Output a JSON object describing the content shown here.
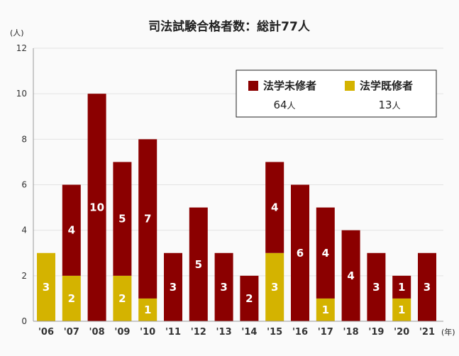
{
  "title": "司法試験合格者数：総計77人",
  "y_unit": "(人)",
  "x_unit": "(年)",
  "legend": {
    "items": [
      {
        "name": "法学未修者",
        "count": "64",
        "unit": "人",
        "color": "#8b0000"
      },
      {
        "name": "法学既修者",
        "count": "13",
        "unit": "人",
        "color": "#d4b300"
      }
    ]
  },
  "chart_data": {
    "type": "bar",
    "stacked": true,
    "title": "司法試験合格者数：総計77人",
    "xlabel": "",
    "ylabel": "",
    "ylim": [
      0,
      12
    ],
    "yticks": [
      0,
      2,
      4,
      6,
      8,
      10,
      12
    ],
    "grid": true,
    "legend_position": "top-right",
    "categories": [
      "'06",
      "'07",
      "'08",
      "'09",
      "'10",
      "'11",
      "'12",
      "'13",
      "'14",
      "'15",
      "'16",
      "'17",
      "'18",
      "'19",
      "'20",
      "'21"
    ],
    "series": [
      {
        "name": "法学既修者",
        "color": "#d4b300",
        "values": [
          3,
          2,
          0,
          2,
          1,
          0,
          0,
          0,
          0,
          3,
          0,
          1,
          0,
          0,
          1,
          0
        ]
      },
      {
        "name": "法学未修者",
        "color": "#8b0000",
        "values": [
          0,
          4,
          10,
          5,
          7,
          3,
          5,
          3,
          2,
          4,
          6,
          4,
          4,
          3,
          1,
          3
        ]
      }
    ]
  }
}
